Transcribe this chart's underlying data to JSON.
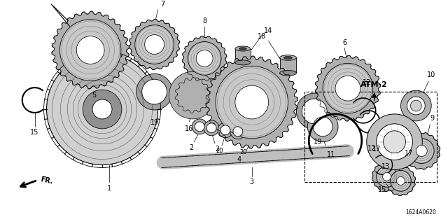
{
  "background_color": "#ffffff",
  "diagram_code": "1624A0620",
  "atm_label": "ATM-2",
  "line_color": "#1a1a1a",
  "gray_fill": "#c8c8c8",
  "dark_fill": "#888888",
  "light_gray": "#e8e8e8"
}
